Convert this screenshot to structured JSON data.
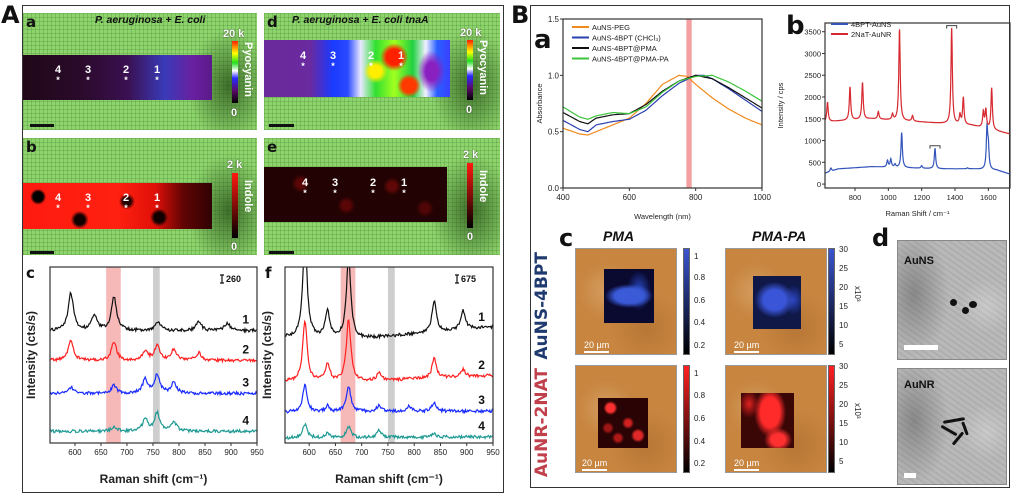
{
  "figure": {
    "panel_A": "A",
    "panel_B": "B"
  },
  "panelA": {
    "a": {
      "letter": "a",
      "title": "P. aeruginosa + E. coli",
      "colorbar": {
        "max": "20 k",
        "min": "0",
        "label": "Pyocyanin"
      }
    },
    "b": {
      "letter": "b",
      "colorbar": {
        "max": "2 k",
        "min": "0",
        "label": "Indole"
      }
    },
    "d": {
      "letter": "d",
      "title": "P. aeruginosa + E. coli tnaA",
      "colorbar": {
        "max": "20 k",
        "min": "0",
        "label": "Pyocyanin"
      }
    },
    "e": {
      "letter": "e",
      "colorbar": {
        "max": "2 k",
        "min": "0",
        "label": "Indole"
      }
    },
    "points": [
      "4",
      "3",
      "2",
      "1"
    ],
    "point_marker": "*",
    "c_letter": "c",
    "f_letter": "f"
  },
  "panelB": {
    "a_letter": "a",
    "b_letter": "b",
    "c": {
      "letter": "c",
      "col_titles": [
        "PMA",
        "PMA-PA"
      ],
      "row_labels": [
        "AuNS-4BPT",
        "AuNR-2NAT"
      ],
      "row_colors": [
        "#1f3a6e",
        "#c0404b"
      ],
      "scale_bar": "20 µm",
      "cbar_left_ticks": [
        "1",
        "0.8",
        "0.6",
        "0.4",
        "0.2"
      ],
      "cbar_right_ticks": [
        "30",
        "25",
        "20",
        "15",
        "10",
        "5"
      ],
      "cbar_right_unit": "x10³"
    },
    "d": {
      "letter": "d",
      "labels": [
        "AuNS",
        "AuNR"
      ]
    }
  },
  "chart_data": [
    {
      "type": "line",
      "panel": "c",
      "xlabel": "Raman shift (cm⁻¹)",
      "ylabel": "Intensity (cts/s)",
      "xlim": [
        552,
        950
      ],
      "ylim": [
        0,
        5720
      ],
      "xticks": [
        600,
        650,
        700,
        750,
        800,
        850,
        900,
        950
      ],
      "scale_bar": "260",
      "bands": [
        {
          "range": [
            660,
            688
          ],
          "color": "#f4a0a0"
        },
        {
          "range": [
            750,
            763
          ],
          "color": "#bdbdbd"
        }
      ],
      "series": [
        {
          "label": "1",
          "color": "#111111",
          "baseline": [
            [
              552,
              3650
            ],
            [
              950,
              3650
            ]
          ],
          "peaks": [
            [
              592,
              4880
            ],
            [
              637,
              4150
            ],
            [
              675,
              4750
            ],
            [
              760,
              3950
            ],
            [
              838,
              3950
            ],
            [
              893,
              3900
            ]
          ]
        },
        {
          "label": "2",
          "color": "#ff2020",
          "baseline": [
            [
              552,
              2680
            ],
            [
              950,
              2680
            ]
          ],
          "peaks": [
            [
              592,
              3330
            ],
            [
              675,
              3280
            ],
            [
              735,
              2980
            ],
            [
              758,
              3180
            ],
            [
              790,
              3030
            ],
            [
              838,
              2930
            ]
          ]
        },
        {
          "label": "3",
          "color": "#1a2cff",
          "baseline": [
            [
              552,
              1610
            ],
            [
              950,
              1610
            ]
          ],
          "peaks": [
            [
              592,
              1810
            ],
            [
              675,
              1860
            ],
            [
              735,
              2060
            ],
            [
              758,
              2210
            ],
            [
              790,
              1960
            ]
          ]
        },
        {
          "label": "4",
          "color": "#1f9a94",
          "baseline": [
            [
              552,
              380
            ],
            [
              950,
              380
            ]
          ],
          "peaks": [
            [
              675,
              530
            ],
            [
              735,
              780
            ],
            [
              758,
              980
            ],
            [
              790,
              680
            ]
          ]
        }
      ]
    },
    {
      "type": "line",
      "panel": "f",
      "xlabel": "Raman shift (cm⁻¹)",
      "ylabel": "Intensity (cts/s)",
      "xlim": [
        554,
        950
      ],
      "ylim": [
        0,
        14850
      ],
      "xticks": [
        600,
        650,
        700,
        750,
        800,
        850,
        900,
        950
      ],
      "scale_bar": "675",
      "bands": [
        {
          "range": [
            660,
            688
          ],
          "color": "#f4a0a0"
        },
        {
          "range": [
            750,
            763
          ],
          "color": "#bdbdbd"
        }
      ],
      "series": [
        {
          "label": "1",
          "color": "#111111",
          "baseline": [
            [
              554,
              8900
            ],
            [
              700,
              8800
            ],
            [
              950,
              9800
            ]
          ],
          "peaks": [
            [
              592,
              17200
            ],
            [
              635,
              11100
            ],
            [
              675,
              15600
            ],
            [
              838,
              12000
            ],
            [
              893,
              11200
            ]
          ]
        },
        {
          "label": "2",
          "color": "#ff2020",
          "baseline": [
            [
              554,
              5200
            ],
            [
              700,
              5200
            ],
            [
              950,
              5700
            ]
          ],
          "peaks": [
            [
              592,
              10300
            ],
            [
              635,
              6700
            ],
            [
              675,
              10400
            ],
            [
              733,
              5900
            ],
            [
              838,
              7100
            ],
            [
              893,
              6200
            ]
          ]
        },
        {
          "label": "3",
          "color": "#1a2cff",
          "baseline": [
            [
              554,
              2600
            ],
            [
              950,
              2700
            ]
          ],
          "peaks": [
            [
              592,
              4900
            ],
            [
              635,
              3100
            ],
            [
              675,
              4800
            ],
            [
              733,
              3200
            ],
            [
              790,
              3100
            ],
            [
              838,
              3400
            ]
          ]
        },
        {
          "label": "4",
          "color": "#1f9a94",
          "baseline": [
            [
              554,
              420
            ],
            [
              950,
              520
            ]
          ],
          "peaks": [
            [
              592,
              1600
            ],
            [
              635,
              800
            ],
            [
              675,
              1400
            ],
            [
              733,
              1100
            ],
            [
              838,
              800
            ]
          ]
        }
      ]
    },
    {
      "type": "line",
      "panel": "a",
      "xlabel": "Wavelength (nm)",
      "ylabel": "Absorbance",
      "xlim": [
        400,
        1000
      ],
      "ylim": [
        0.0,
        1.5
      ],
      "xticks": [
        400,
        600,
        800,
        1000
      ],
      "yticks": [
        0.0,
        0.5,
        1.0,
        1.5
      ],
      "ytick_labels": [
        "0.0",
        "0.5",
        "1.0",
        "1.5"
      ],
      "legend": "top-left",
      "bands": [
        {
          "range": [
            772,
            788
          ],
          "color": "#f08080"
        }
      ],
      "series": [
        {
          "name": "AuNS-PEG",
          "color": "#f08a1c",
          "points": [
            [
              400,
              0.53
            ],
            [
              450,
              0.48
            ],
            [
              475,
              0.47
            ],
            [
              500,
              0.5
            ],
            [
              550,
              0.56
            ],
            [
              600,
              0.62
            ],
            [
              650,
              0.75
            ],
            [
              700,
              0.92
            ],
            [
              750,
              1.0
            ],
            [
              775,
              0.99
            ],
            [
              800,
              0.92
            ],
            [
              850,
              0.8
            ],
            [
              900,
              0.7
            ],
            [
              950,
              0.62
            ],
            [
              1000,
              0.56
            ]
          ]
        },
        {
          "name": "AuNS-4BPT (CHCl₃)",
          "color": "#2a3fb0",
          "points": [
            [
              400,
              0.6
            ],
            [
              450,
              0.52
            ],
            [
              475,
              0.5
            ],
            [
              500,
              0.56
            ],
            [
              550,
              0.59
            ],
            [
              600,
              0.61
            ],
            [
              650,
              0.69
            ],
            [
              700,
              0.82
            ],
            [
              750,
              0.93
            ],
            [
              800,
              1.0
            ],
            [
              825,
              1.0
            ],
            [
              850,
              0.97
            ],
            [
              900,
              0.88
            ],
            [
              950,
              0.78
            ],
            [
              1000,
              0.68
            ]
          ]
        },
        {
          "name": "AuNS-4BPT@PMA",
          "color": "#111111",
          "points": [
            [
              400,
              0.67
            ],
            [
              450,
              0.59
            ],
            [
              475,
              0.57
            ],
            [
              500,
              0.62
            ],
            [
              550,
              0.65
            ],
            [
              600,
              0.66
            ],
            [
              650,
              0.74
            ],
            [
              700,
              0.86
            ],
            [
              750,
              0.95
            ],
            [
              800,
              1.0
            ],
            [
              850,
              0.97
            ],
            [
              900,
              0.89
            ],
            [
              950,
              0.8
            ],
            [
              1000,
              0.71
            ]
          ]
        },
        {
          "name": "AuNS-4BPT@PMA-PA",
          "color": "#3cc43c",
          "points": [
            [
              400,
              0.72
            ],
            [
              450,
              0.63
            ],
            [
              475,
              0.61
            ],
            [
              500,
              0.64
            ],
            [
              550,
              0.67
            ],
            [
              600,
              0.66
            ],
            [
              650,
              0.72
            ],
            [
              700,
              0.85
            ],
            [
              750,
              0.95
            ],
            [
              800,
              0.99
            ],
            [
              850,
              1.0
            ],
            [
              900,
              0.94
            ],
            [
              950,
              0.86
            ],
            [
              1000,
              0.77
            ]
          ]
        }
      ]
    },
    {
      "type": "line",
      "panel": "b",
      "xlabel": "Raman Shift / cm⁻¹",
      "ylabel": "Intensity / cps",
      "xlim": [
        620,
        1730
      ],
      "ylim": [
        -90,
        3700
      ],
      "xticks": [
        800,
        1000,
        1200,
        1400,
        1600
      ],
      "yticks": [
        0,
        500,
        1000,
        1500,
        2000,
        2500,
        3000,
        3500
      ],
      "ytick_labels": [
        "0",
        "500",
        "1000",
        "1500",
        "2000",
        "2500",
        "3000",
        "3500"
      ],
      "legend": "top-left",
      "markers": [
        [
          1380,
          3640
        ],
        [
          1280,
          880
        ]
      ],
      "series": [
        {
          "name": "4BPT-AuNS",
          "color": "#3355bb",
          "baseline": [
            [
              620,
              250
            ],
            [
              700,
              350
            ],
            [
              900,
              400
            ],
            [
              1300,
              350
            ],
            [
              1500,
              350
            ],
            [
              1650,
              320
            ],
            [
              1730,
              230
            ]
          ],
          "peaks": [
            [
              655,
              370
            ],
            [
              995,
              540
            ],
            [
              1015,
              570
            ],
            [
              1040,
              450
            ],
            [
              1080,
              1180
            ],
            [
              1200,
              420
            ],
            [
              1280,
              820
            ],
            [
              1475,
              370
            ],
            [
              1592,
              1250
            ],
            [
              1600,
              800
            ]
          ]
        },
        {
          "name": "2NaT-AuNR",
          "color": "#d6282e",
          "baseline": [
            [
              620,
              1430
            ],
            [
              900,
              1500
            ],
            [
              1300,
              1400
            ],
            [
              1500,
              1350
            ],
            [
              1730,
              1150
            ]
          ],
          "peaks": [
            [
              635,
              1880
            ],
            [
              770,
              2230
            ],
            [
              845,
              2330
            ],
            [
              940,
              1660
            ],
            [
              1025,
              1600
            ],
            [
              1067,
              3550
            ],
            [
              1145,
              1570
            ],
            [
              1380,
              3580
            ],
            [
              1430,
              1580
            ],
            [
              1450,
              1980
            ],
            [
              1570,
              1650
            ],
            [
              1585,
              1700
            ],
            [
              1620,
              2200
            ]
          ]
        }
      ]
    }
  ]
}
